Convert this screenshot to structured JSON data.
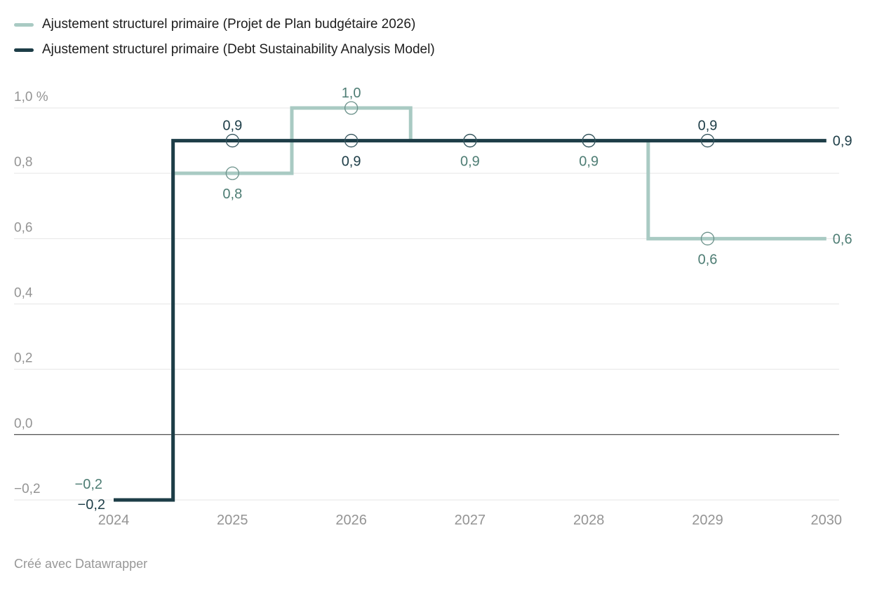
{
  "legend": {
    "items": [
      {
        "id": "pbp2026",
        "label": "Ajustement structurel primaire (Projet de Plan budgétaire 2026)",
        "color": "#a9cac3"
      },
      {
        "id": "dsa",
        "label": "Ajustement structurel primaire (Debt Sustainability Analysis Model)",
        "color": "#1d3d47"
      }
    ]
  },
  "footer": {
    "credit": "Créé avec Datawrapper"
  },
  "chart_data": {
    "type": "line",
    "subtype": "step",
    "title": "",
    "xlabel": "",
    "ylabel": "",
    "unit": "%",
    "grid": true,
    "legend_position": "top-left",
    "x": [
      2024,
      2025,
      2026,
      2027,
      2028,
      2029,
      2030
    ],
    "x_tick_labels": [
      "2024",
      "2025",
      "2026",
      "2027",
      "2028",
      "2029",
      "2030"
    ],
    "ylim": [
      -0.2,
      1.0
    ],
    "yticks": [
      {
        "v": 1.0,
        "label": "1,0 %"
      },
      {
        "v": 0.8,
        "label": "0,8"
      },
      {
        "v": 0.6,
        "label": "0,6"
      },
      {
        "v": 0.4,
        "label": "0,4"
      },
      {
        "v": 0.2,
        "label": "0,2"
      },
      {
        "v": 0.0,
        "label": "0,0"
      },
      {
        "v": -0.2,
        "label": "−0,2"
      }
    ],
    "series": [
      {
        "id": "pbp2026",
        "name": "Ajustement structurel primaire (Projet de Plan budgétaire 2026)",
        "color": "#a9cac3",
        "label_color": "#4e7d74",
        "marker_stroke": "#6b918a",
        "values": [
          -0.2,
          0.8,
          1.0,
          0.9,
          0.9,
          0.6,
          0.6
        ]
      },
      {
        "id": "dsa",
        "name": "Ajustement structurel primaire (Debt Sustainability Analysis Model)",
        "color": "#1d3d47",
        "label_color": "#1d3d47",
        "marker_stroke": "#35545d",
        "values": [
          -0.2,
          0.9,
          0.9,
          0.9,
          0.9,
          0.9,
          0.9
        ]
      }
    ],
    "marker_years": [
      2025,
      2026,
      2027,
      2028,
      2029
    ],
    "value_labels": [
      {
        "series": "pbp2026",
        "year": 2024,
        "v": -0.2,
        "text": "−0,2",
        "placement": "left-above"
      },
      {
        "series": "dsa",
        "year": 2024,
        "v": -0.2,
        "text": "−0,2",
        "placement": "left-below"
      },
      {
        "series": "dsa",
        "year": 2025,
        "v": 0.9,
        "text": "0,9",
        "placement": "above"
      },
      {
        "series": "pbp2026",
        "year": 2025,
        "v": 0.8,
        "text": "0,8",
        "placement": "below"
      },
      {
        "series": "pbp2026",
        "year": 2026,
        "v": 1.0,
        "text": "1,0",
        "placement": "above"
      },
      {
        "series": "dsa",
        "year": 2026,
        "v": 0.9,
        "text": "0,9",
        "placement": "below"
      },
      {
        "series": "pbp2026",
        "year": 2027,
        "v": 0.9,
        "text": "0,9",
        "placement": "below"
      },
      {
        "series": "pbp2026",
        "year": 2028,
        "v": 0.9,
        "text": "0,9",
        "placement": "below"
      },
      {
        "series": "dsa",
        "year": 2029,
        "v": 0.9,
        "text": "0,9",
        "placement": "above"
      },
      {
        "series": "pbp2026",
        "year": 2029,
        "v": 0.6,
        "text": "0,6",
        "placement": "below"
      }
    ],
    "edge_labels": [
      {
        "series": "dsa",
        "v": 0.9,
        "text": "0,9"
      },
      {
        "series": "pbp2026",
        "v": 0.6,
        "text": "0,6"
      }
    ],
    "colors": {
      "grid": "#e6e6e6",
      "zero_line": "#222222",
      "axis_text": "#949494"
    }
  }
}
